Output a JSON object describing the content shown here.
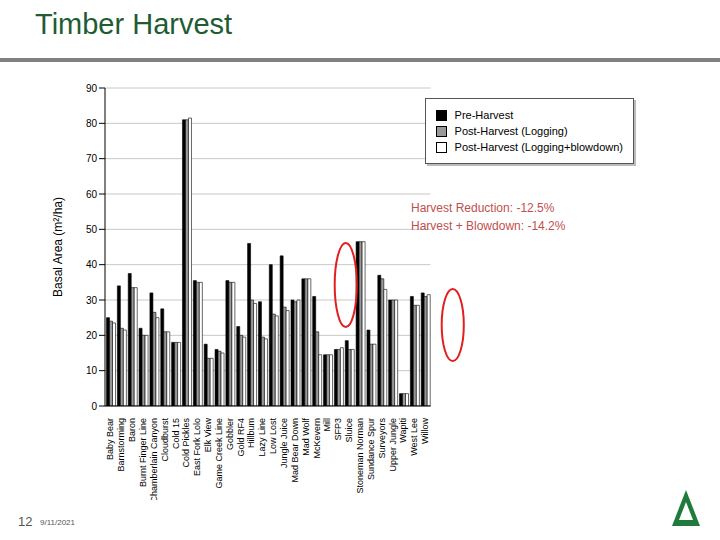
{
  "slide": {
    "title": "Timber Harvest",
    "page": "12",
    "date": "9/11/2021"
  },
  "chart_data": {
    "type": "bar",
    "y_label": "Basal Area (m²/ha)",
    "categories": [
      "Baby Bear",
      "Barnstorming",
      "Baron",
      "Burnt Finger Line",
      "Chamberlain Canyon",
      "Cloudburst",
      "Cold 15",
      "Cold Pickles",
      "East Fork Lolo",
      "Elk View",
      "Game Creek Line",
      "Gobbler",
      "Gold RF4",
      "Hillbum",
      "Lazy Line",
      "Low Lost",
      "Jungle Juice",
      "Mad Bear Down",
      "Mad Wolf",
      "McKevern",
      "Mill",
      "SFP3",
      "Sluice",
      "Stoneman Norman",
      "Sundance Spur",
      "Surveyors",
      "Upper Jungle",
      "Wapiti",
      "West Lee",
      "Willow"
    ],
    "series": [
      {
        "name": "Pre-Harvest",
        "color": "#000000",
        "values": [
          25,
          34,
          37.5,
          22,
          32,
          27.5,
          18,
          81,
          35.5,
          17.5,
          16,
          35.5,
          22.5,
          46,
          29.5,
          40,
          42.5,
          30,
          36,
          31,
          14.5,
          16,
          18.5,
          46.5,
          21.5,
          37,
          30,
          3.5,
          31,
          32
        ]
      },
      {
        "name": "Post-Harvest (Logging)",
        "color": "#999999",
        "values": [
          24,
          22,
          33.5,
          20,
          26.5,
          21,
          18,
          81,
          35,
          13.5,
          15.5,
          35,
          20,
          30,
          19.5,
          26,
          28,
          29.5,
          36,
          21,
          14.5,
          16,
          16,
          46.5,
          17.5,
          36,
          30,
          3.5,
          28.5,
          31
        ]
      },
      {
        "name": "Post-Harvest (Logging+blowdown)",
        "color": "#ffffff",
        "values": [
          23.5,
          21.5,
          33.5,
          20,
          25,
          21,
          18,
          81.5,
          35,
          13.5,
          15,
          35,
          19.5,
          29,
          19,
          25.5,
          27,
          30,
          36,
          14.5,
          14.5,
          16.5,
          16,
          46.5,
          17.5,
          33,
          30,
          3.5,
          28.5,
          31.5
        ]
      }
    ],
    "ylim": [
      0,
      90
    ],
    "yticks": [
      0,
      10,
      20,
      30,
      40,
      50,
      60,
      70,
      80,
      90
    ],
    "grid": true,
    "legend": "upper right",
    "annotations": [
      "Harvest Reduction: -12.5%",
      "Harvest + Blowdown: -14.2%"
    ]
  }
}
